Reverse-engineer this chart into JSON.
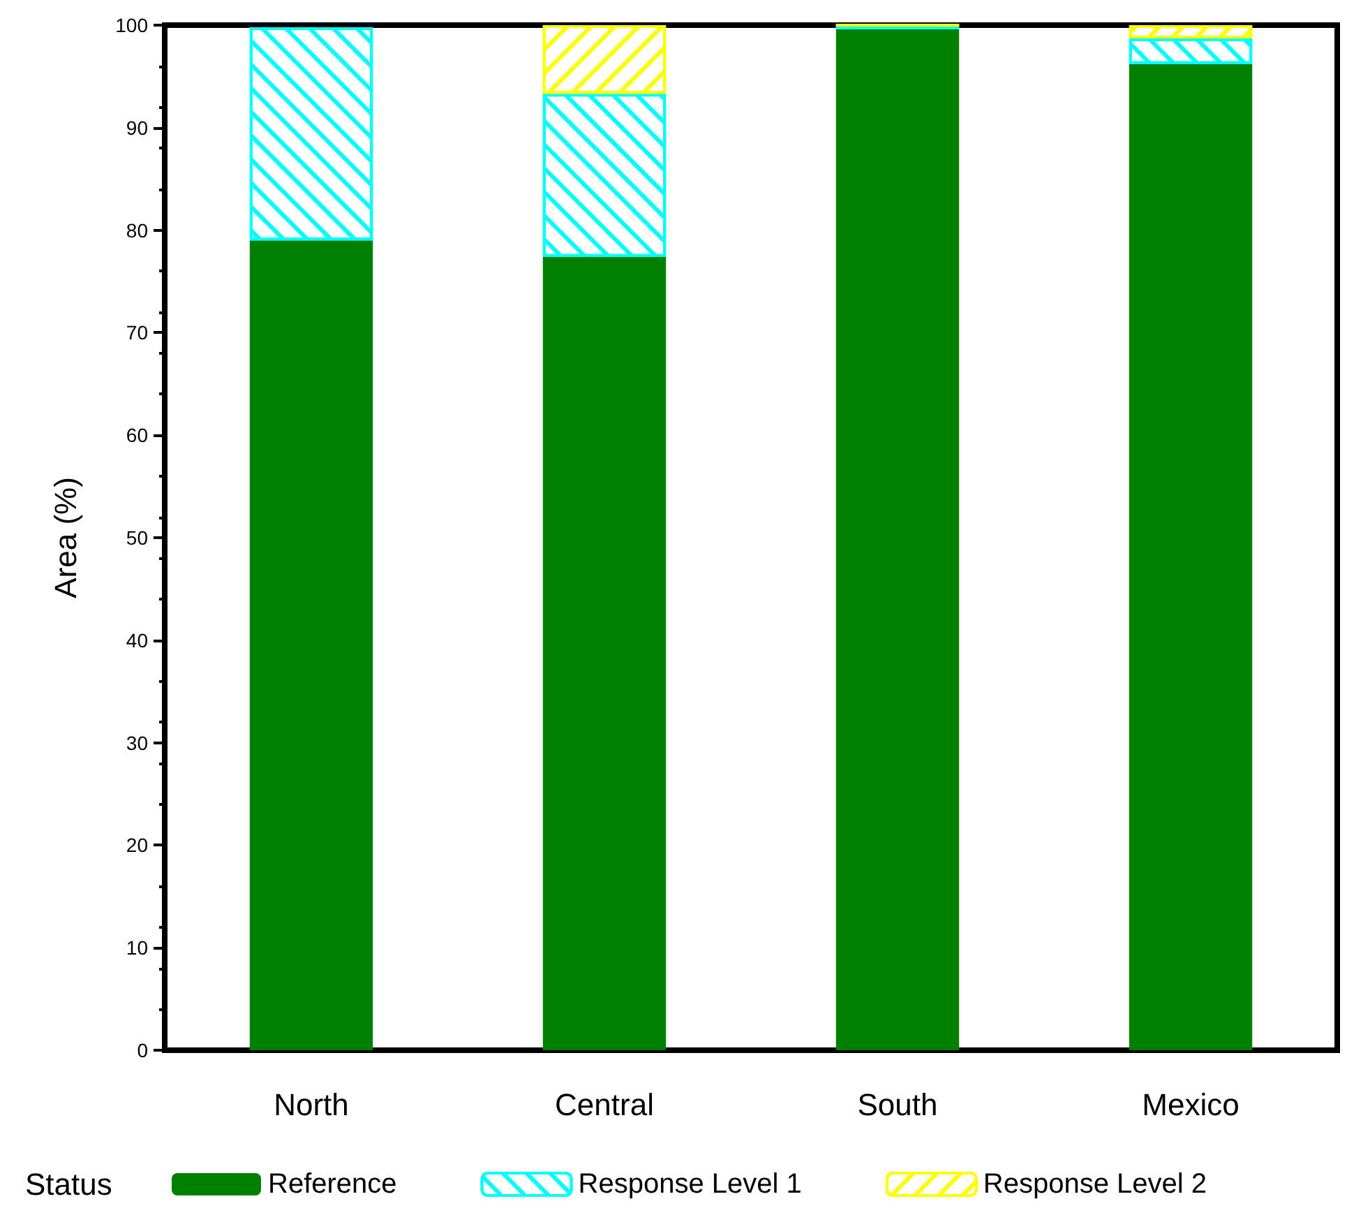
{
  "chart_data": {
    "type": "bar",
    "stacked": true,
    "ylabel": "Area (%)",
    "legend_title": "Status",
    "legend": "bottom",
    "grid": false,
    "categories": [
      "North",
      "Central",
      "South",
      "Mexico"
    ],
    "series": [
      {
        "name": "Reference",
        "color": "#008000",
        "values": [
          79,
          77.4,
          99.6,
          96.2
        ]
      },
      {
        "name": "Response Level 1",
        "color": "#00ffff",
        "values": [
          20.8,
          15.9,
          0.4,
          2.5
        ]
      },
      {
        "name": "Response Level 2",
        "color": "#ffff00",
        "values": [
          null,
          6.7,
          0,
          1.3
        ]
      }
    ],
    "ylim": [
      0,
      100
    ],
    "yticks": [
      0,
      10,
      20,
      30,
      40,
      50,
      60,
      70,
      80,
      90,
      100
    ]
  }
}
